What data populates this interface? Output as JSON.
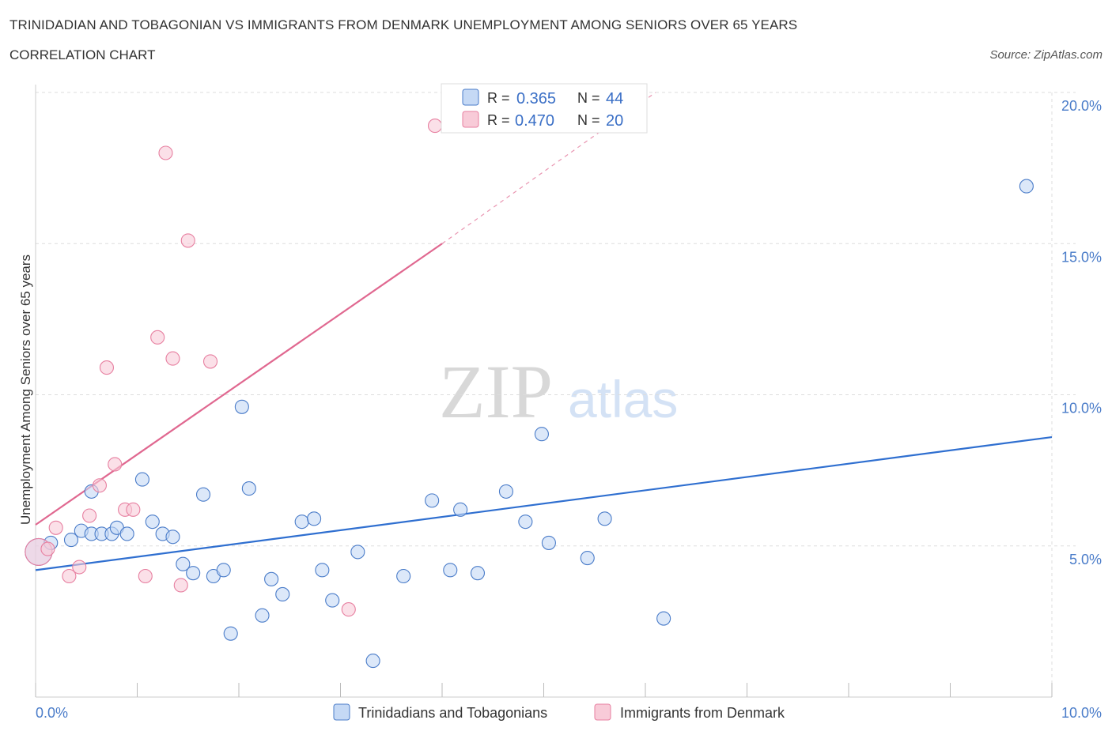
{
  "header": {
    "title": "TRINIDADIAN AND TOBAGONIAN VS IMMIGRANTS FROM DENMARK UNEMPLOYMENT AMONG SENIORS OVER 65 YEARS",
    "subtitle": "CORRELATION CHART",
    "source": "Source: ZipAtlas.com"
  },
  "colors": {
    "blue": "#4a7cc9",
    "blue_fill": "#c5d9f5",
    "blue_line": "#2f6fd0",
    "pink": "#e77fa0",
    "pink_fill": "#f8cbd8",
    "pink_line": "#e06890",
    "grid": "#dddddd"
  },
  "chart_data": {
    "type": "scatter",
    "ylabel": "Unemployment Among Seniors over 65 years",
    "xlim": [
      0,
      10
    ],
    "ylim": [
      0,
      20
    ],
    "x_tick_labels": [
      "0.0%",
      "10.0%"
    ],
    "y_ticks": [
      5,
      10,
      15,
      20
    ],
    "y_tick_labels": [
      "5.0%",
      "10.0%",
      "15.0%",
      "20.0%"
    ],
    "grid": true,
    "watermark": {
      "zip": "ZIP",
      "atlas": "atlas"
    },
    "legend_position": "bottom",
    "stats": [
      {
        "r_label": "R =",
        "r_value": "0.365",
        "n_label": "N =",
        "n_value": "44"
      },
      {
        "r_label": "R =",
        "r_value": "0.470",
        "n_label": "N =",
        "n_value": "20"
      }
    ],
    "series": [
      {
        "name": "Trinidadians and Tobagonians",
        "color": "#4a7cc9",
        "points": [
          [
            0.03,
            4.8
          ],
          [
            0.15,
            5.1
          ],
          [
            0.35,
            5.2
          ],
          [
            0.45,
            5.5
          ],
          [
            0.55,
            6.8
          ],
          [
            0.55,
            5.4
          ],
          [
            0.65,
            5.4
          ],
          [
            0.75,
            5.4
          ],
          [
            0.8,
            5.6
          ],
          [
            0.9,
            5.4
          ],
          [
            1.05,
            7.2
          ],
          [
            1.15,
            5.8
          ],
          [
            1.25,
            5.4
          ],
          [
            1.35,
            5.3
          ],
          [
            1.45,
            4.4
          ],
          [
            1.55,
            4.1
          ],
          [
            1.65,
            6.7
          ],
          [
            1.75,
            4.0
          ],
          [
            1.85,
            4.2
          ],
          [
            1.92,
            2.1
          ],
          [
            2.03,
            9.6
          ],
          [
            2.1,
            6.9
          ],
          [
            2.23,
            2.7
          ],
          [
            2.32,
            3.9
          ],
          [
            2.43,
            3.4
          ],
          [
            2.62,
            5.8
          ],
          [
            2.74,
            5.9
          ],
          [
            2.82,
            4.2
          ],
          [
            2.92,
            3.2
          ],
          [
            3.17,
            4.8
          ],
          [
            3.32,
            1.2
          ],
          [
            3.62,
            4.0
          ],
          [
            3.9,
            6.5
          ],
          [
            4.08,
            4.2
          ],
          [
            4.18,
            6.2
          ],
          [
            4.35,
            4.1
          ],
          [
            4.63,
            6.8
          ],
          [
            4.82,
            5.8
          ],
          [
            4.98,
            8.7
          ],
          [
            5.05,
            5.1
          ],
          [
            5.43,
            4.6
          ],
          [
            5.6,
            5.9
          ],
          [
            6.18,
            2.6
          ],
          [
            9.75,
            16.9
          ]
        ],
        "trend": [
          [
            0,
            4.2
          ],
          [
            10,
            8.6
          ]
        ]
      },
      {
        "name": "Immigrants from Denmark",
        "color": "#e77fa0",
        "points": [
          [
            0.03,
            4.8
          ],
          [
            0.12,
            4.9
          ],
          [
            0.2,
            5.6
          ],
          [
            0.33,
            4.0
          ],
          [
            0.43,
            4.3
          ],
          [
            0.53,
            6.0
          ],
          [
            0.63,
            7.0
          ],
          [
            0.7,
            10.9
          ],
          [
            0.78,
            7.7
          ],
          [
            0.88,
            6.2
          ],
          [
            0.96,
            6.2
          ],
          [
            1.08,
            4.0
          ],
          [
            1.2,
            11.9
          ],
          [
            1.28,
            18.0
          ],
          [
            1.35,
            11.2
          ],
          [
            1.43,
            3.7
          ],
          [
            1.5,
            15.1
          ],
          [
            1.72,
            11.1
          ],
          [
            3.08,
            2.9
          ],
          [
            3.93,
            18.9
          ]
        ],
        "trend": [
          [
            0,
            5.7
          ],
          [
            4,
            15.0
          ]
        ],
        "trend_extension": [
          [
            4,
            15.0
          ],
          [
            6.1,
            20.0
          ]
        ]
      }
    ]
  }
}
